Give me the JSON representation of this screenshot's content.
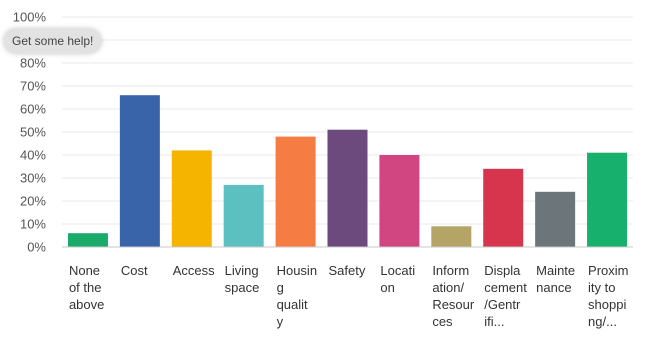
{
  "help": {
    "label": "Get some help!"
  },
  "chart_data": {
    "type": "bar",
    "categories": [
      [
        "None",
        "of the",
        "above"
      ],
      [
        "Cost"
      ],
      [
        "Access"
      ],
      [
        "Living",
        "space"
      ],
      [
        "Housin",
        "g",
        "qualit",
        "y"
      ],
      [
        "Safety"
      ],
      [
        "Locati",
        "on"
      ],
      [
        "Inform",
        "ation/",
        "Resour",
        "ces"
      ],
      [
        "Displa",
        "cement",
        "/Gentr",
        "ifi..."
      ],
      [
        "Mainte",
        "nance"
      ],
      [
        "Proxim",
        "ity to",
        "shoppi",
        "ng/..."
      ]
    ],
    "values": [
      6,
      66,
      42,
      27,
      48,
      51,
      40,
      9,
      34,
      24,
      41
    ],
    "colors": [
      "#1aab6b",
      "#3a64aa",
      "#f5b400",
      "#5cbfc0",
      "#f57c43",
      "#6c4a7e",
      "#d14580",
      "#b4a466",
      "#d6354d",
      "#6b757a",
      "#18b06d"
    ],
    "yticks": [
      "0%",
      "10%",
      "20%",
      "30%",
      "40%",
      "50%",
      "60%",
      "70%",
      "80%",
      "90%",
      "100%"
    ],
    "ylim": [
      0,
      100
    ],
    "ylabel": "",
    "xlabel": "",
    "title": "",
    "grid": true
  }
}
